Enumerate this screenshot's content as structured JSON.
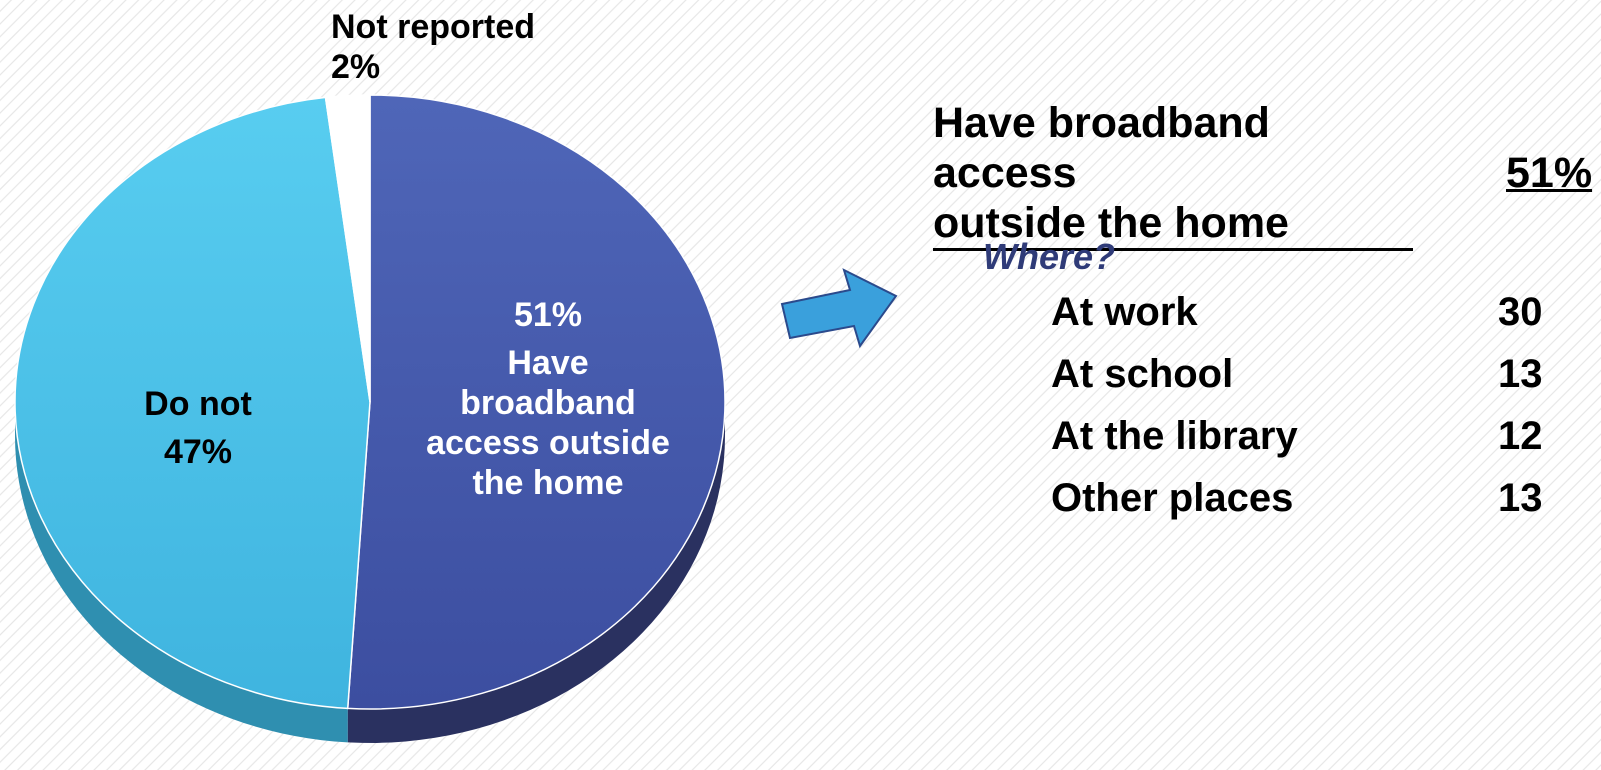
{
  "chart_data": [
    {
      "type": "pie",
      "slices": [
        {
          "label": "Have broadband access outside the home",
          "value": 51,
          "display": "51%",
          "color": "#4a5fb5"
        },
        {
          "label": "Do not",
          "value": 47,
          "display": "47%",
          "color": "#4cc6ea"
        },
        {
          "label": "Not reported",
          "value": 2,
          "display": "2%",
          "color": "#ffffff"
        }
      ],
      "labels": {
        "have_pct": "51%",
        "have_text": [
          "Have",
          "broadband",
          "access outside",
          "the home"
        ],
        "donot_text": "Do not",
        "donot_pct": "47%",
        "notrep_text": "Not reported",
        "notrep_pct": "2%"
      }
    },
    {
      "type": "table",
      "heading_line1": "Have broadband access",
      "heading_line2": "outside the home",
      "total": "51%",
      "subheading": "Where?",
      "rows": [
        {
          "label": "At work",
          "value": "30"
        },
        {
          "label": "At school",
          "value": "13"
        },
        {
          "label": "At the library",
          "value": "12"
        },
        {
          "label": "Other places",
          "value": "13"
        }
      ]
    }
  ],
  "arrow": {
    "icon": "right-arrow-icon",
    "color": "#3aa0dc"
  }
}
